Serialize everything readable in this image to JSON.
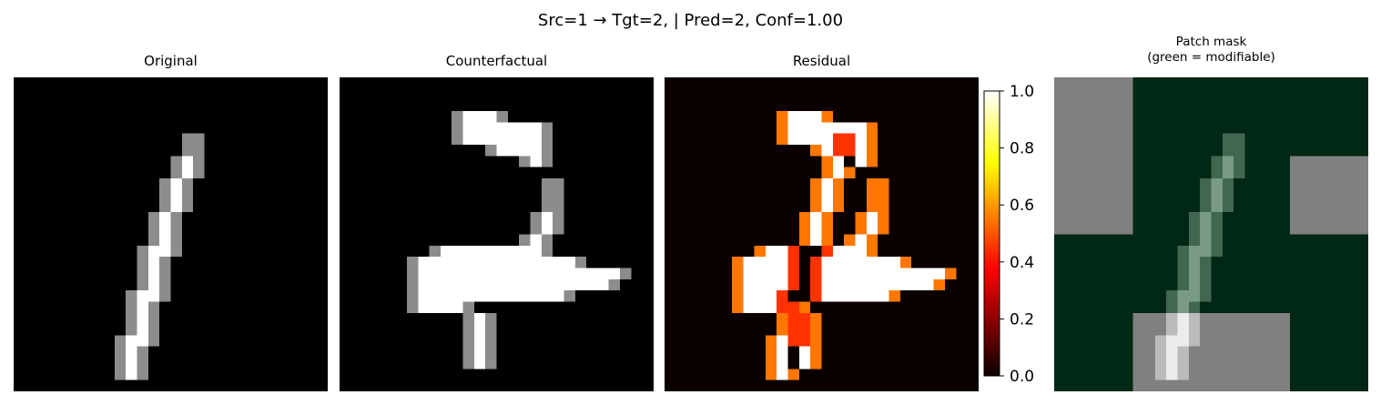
{
  "suptitle": "Src=1 → Tgt=2, | Pred=2, Conf=1.00",
  "panels": {
    "original": {
      "title": "Original"
    },
    "counterfactual": {
      "title": "Counterfactual"
    },
    "residual": {
      "title": "Residual"
    },
    "mask": {
      "title_line1": "Patch mask",
      "title_line2": "(green = modifiable)"
    }
  },
  "chart_data": [
    {
      "type": "heatmap",
      "title": "Original",
      "colormap": "gray",
      "grid": false,
      "note": "28x28 grayscale digit image (digit 1), rows 0-27 top to bottom",
      "strokes_rows": [
        [
          5,
          15,
          16
        ],
        [
          6,
          15,
          16
        ],
        [
          7,
          14,
          16
        ],
        [
          8,
          14,
          16
        ],
        [
          9,
          13,
          15
        ],
        [
          10,
          13,
          15
        ],
        [
          11,
          13,
          15
        ],
        [
          12,
          12,
          14
        ],
        [
          13,
          12,
          14
        ],
        [
          14,
          12,
          14
        ],
        [
          15,
          11,
          14
        ],
        [
          16,
          11,
          13
        ],
        [
          17,
          11,
          13
        ],
        [
          18,
          11,
          13
        ],
        [
          19,
          10,
          13
        ],
        [
          20,
          10,
          12
        ],
        [
          21,
          10,
          12
        ],
        [
          22,
          10,
          12
        ],
        [
          23,
          9,
          12
        ],
        [
          24,
          9,
          11
        ],
        [
          25,
          9,
          11
        ],
        [
          26,
          9,
          11
        ]
      ]
    },
    {
      "type": "heatmap",
      "title": "Counterfactual",
      "colormap": "gray",
      "grid": false,
      "note": "28x28 grayscale counterfactual image (digit 2)",
      "strokes_rows": [
        [
          3,
          10,
          14
        ],
        [
          4,
          10,
          18
        ],
        [
          5,
          10,
          18
        ],
        [
          6,
          13,
          18
        ],
        [
          7,
          16,
          18
        ],
        [
          9,
          18,
          19
        ],
        [
          10,
          18,
          19
        ],
        [
          11,
          18,
          19
        ],
        [
          12,
          17,
          19
        ],
        [
          13,
          17,
          19
        ],
        [
          14,
          16,
          18
        ],
        [
          15,
          8,
          18
        ],
        [
          16,
          6,
          21
        ],
        [
          17,
          6,
          25
        ],
        [
          18,
          6,
          24
        ],
        [
          19,
          6,
          20
        ],
        [
          20,
          6,
          11
        ],
        [
          21,
          11,
          13
        ],
        [
          22,
          11,
          13
        ],
        [
          23,
          11,
          13
        ],
        [
          24,
          11,
          13
        ],
        [
          25,
          11,
          13
        ]
      ]
    },
    {
      "type": "heatmap",
      "title": "Residual",
      "colormap": "hot",
      "grid": false,
      "colorbar": {
        "min": 0.0,
        "max": 1.0,
        "ticks": [
          "0.0",
          "0.2",
          "0.4",
          "0.6",
          "0.8",
          "1.0"
        ]
      },
      "note": "absolute difference between counterfactual and original"
    },
    {
      "type": "heatmap",
      "title": "Patch mask\n(green = modifiable)",
      "note": "4x4 patch grid (7x7 pixels each); gray = fixed patches, green = modifiable",
      "patch_grid": [
        [
          0,
          1,
          1,
          1
        ],
        [
          0,
          1,
          1,
          0
        ],
        [
          1,
          1,
          1,
          1
        ],
        [
          1,
          0,
          0,
          1
        ]
      ],
      "colors": {
        "modifiable": "#002814",
        "fixed": "#808080"
      }
    }
  ]
}
